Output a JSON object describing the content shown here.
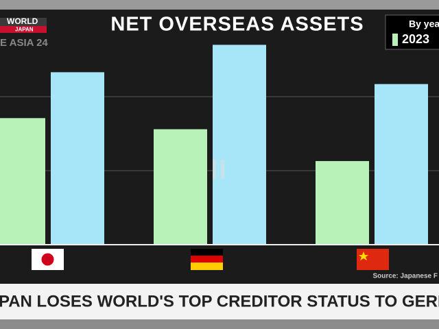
{
  "broadcast": {
    "logo": "WORLD",
    "logo_sub": "JAPAN",
    "channel": "E ASIA 24",
    "headline": "PAN LOSES WORLD'S TOP CREDITOR STATUS TO GERMA"
  },
  "chart_data": {
    "type": "bar",
    "title": "NET OVERSEAS ASSETS",
    "legend_title": "By yea",
    "categories": [
      null,
      null,
      null
    ],
    "series": [
      {
        "name": "2023",
        "color": "#b9f2b9",
        "values": [
          1.71,
          1.56,
          1.13
        ]
      },
      {
        "color": "#a6e6f8",
        "values": [
          2.33,
          2.7,
          2.17
        ]
      }
    ],
    "ylim": [
      0,
      2.75
    ],
    "yticks": [
      0,
      1,
      2
    ],
    "grid": true,
    "source": "Source: Japanese F"
  }
}
